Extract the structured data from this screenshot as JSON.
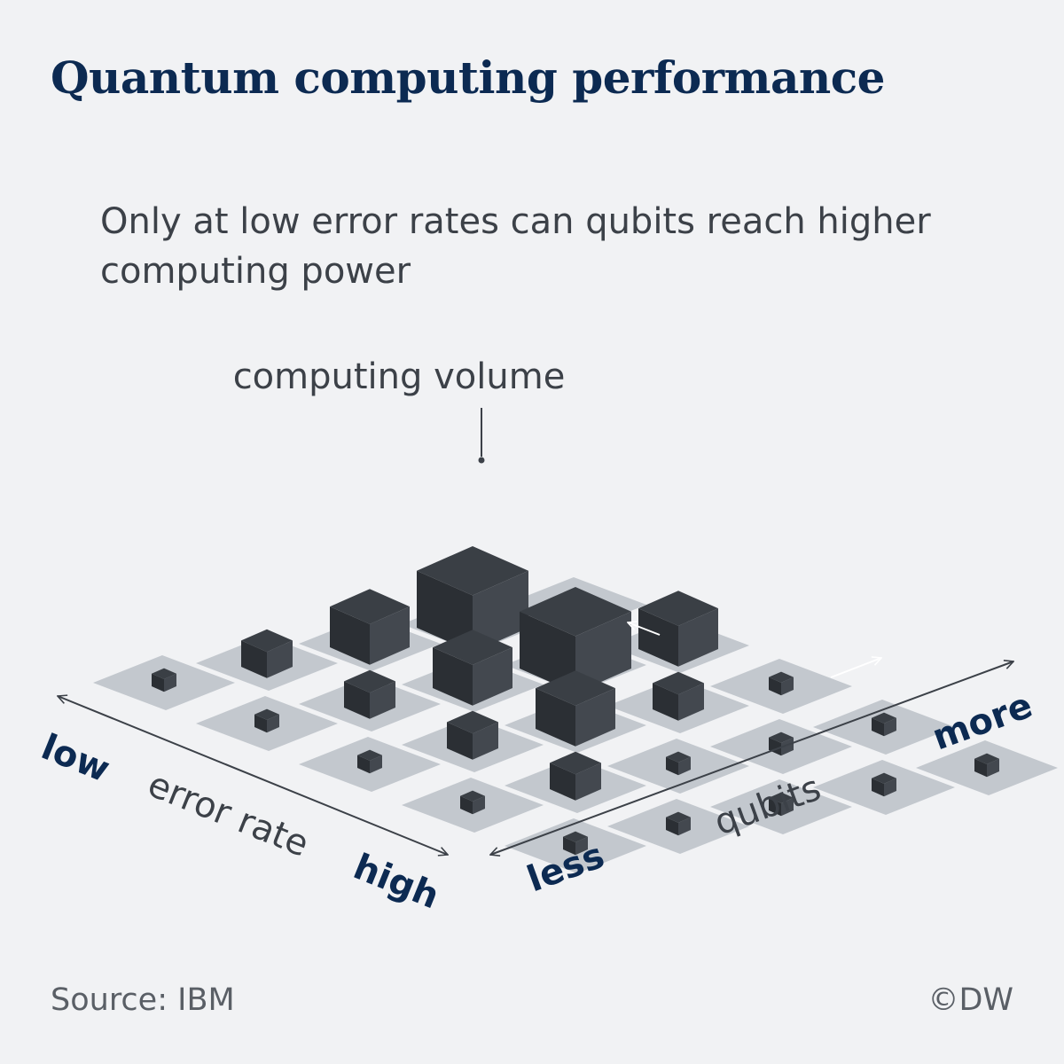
{
  "title": "Quantum computing performance",
  "subtitle": "Only at low error rates can qubits reach higher computing power",
  "callout": "computing volume",
  "axes": {
    "error_rate": {
      "label": "error rate",
      "low": "low",
      "high": "high"
    },
    "qubits": {
      "label": "qubits",
      "less": "less",
      "more": "more"
    }
  },
  "source": "Source: IBM",
  "credit": "©DW",
  "colors": {
    "title": "#0c2a52",
    "axis_endpoint": "#0c2a52",
    "text": "#3c4148",
    "tile": "#c3c8ce",
    "cube_top": "#3a3f45",
    "cube_left": "#2b2f34",
    "cube_right": "#43484f"
  },
  "grid": {
    "rows_description": "error rate levels (row 0 = low error rate)",
    "cols_description": "qubit levels (col 0 = less qubits)",
    "cube_sizes": [
      [
        1,
        2,
        3,
        4,
        5
      ],
      [
        1,
        2,
        3,
        4,
        3
      ],
      [
        1,
        2,
        3,
        2,
        1
      ],
      [
        1,
        2,
        1,
        1,
        1
      ],
      [
        1,
        1,
        1,
        1,
        1
      ]
    ]
  }
}
